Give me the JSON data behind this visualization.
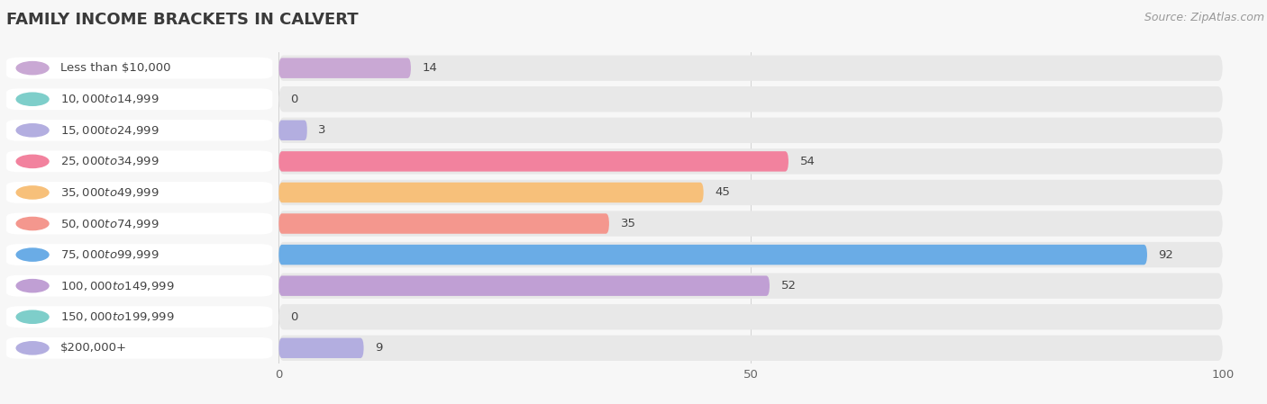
{
  "title": "FAMILY INCOME BRACKETS IN CALVERT",
  "source": "Source: ZipAtlas.com",
  "categories": [
    "Less than $10,000",
    "$10,000 to $14,999",
    "$15,000 to $24,999",
    "$25,000 to $34,999",
    "$35,000 to $49,999",
    "$50,000 to $74,999",
    "$75,000 to $99,999",
    "$100,000 to $149,999",
    "$150,000 to $199,999",
    "$200,000+"
  ],
  "values": [
    14,
    0,
    3,
    54,
    45,
    35,
    92,
    52,
    0,
    9
  ],
  "bar_colors": [
    "#c9a8d4",
    "#7ececa",
    "#b3aee0",
    "#f2829e",
    "#f7c07a",
    "#f4978e",
    "#6aace6",
    "#c09fd4",
    "#7ececa",
    "#b3aee0"
  ],
  "xlim": [
    0,
    100
  ],
  "background_color": "#f7f7f7",
  "row_bg_color": "#e8e8e8",
  "label_bg_color": "#ffffff",
  "title_color": "#3a3a3a",
  "label_color": "#444444",
  "value_color": "#444444",
  "source_color": "#999999",
  "title_fontsize": 13,
  "label_fontsize": 9.5,
  "value_fontsize": 9.5,
  "source_fontsize": 9
}
